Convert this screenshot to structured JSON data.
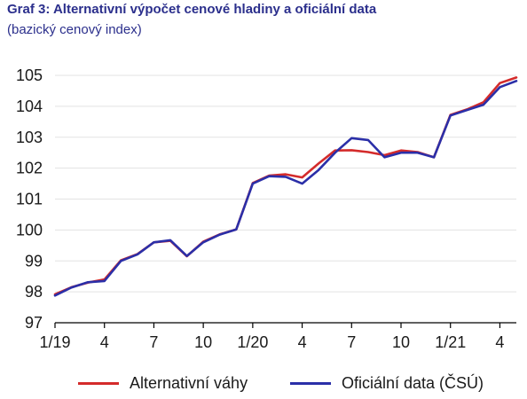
{
  "chart_data": {
    "type": "line",
    "title": "Graf 3: Alternativní výpočet cenové hladiny a oficiální data",
    "subtitle": "(bazický cenový index)",
    "xlabel": "",
    "ylabel": "",
    "ylim": [
      97,
      105
    ],
    "yticks": [
      "97",
      "98",
      "99",
      "100",
      "101",
      "102",
      "103",
      "104",
      "105"
    ],
    "categories": [
      "1/19",
      "2/19",
      "3/19",
      "4/19",
      "5/19",
      "6/19",
      "7/19",
      "8/19",
      "9/19",
      "10/19",
      "11/19",
      "12/19",
      "1/20",
      "2/20",
      "3/20",
      "4/20",
      "5/20",
      "6/20",
      "7/20",
      "8/20",
      "9/20",
      "10/20",
      "11/20",
      "12/20",
      "1/21",
      "2/21",
      "3/21",
      "4/21",
      "5/21"
    ],
    "xticks": [
      {
        "index": 0,
        "label": "1/19"
      },
      {
        "index": 3,
        "label": "4"
      },
      {
        "index": 6,
        "label": "7"
      },
      {
        "index": 9,
        "label": "10"
      },
      {
        "index": 12,
        "label": "1/20"
      },
      {
        "index": 15,
        "label": "4"
      },
      {
        "index": 18,
        "label": "7"
      },
      {
        "index": 21,
        "label": "10"
      },
      {
        "index": 24,
        "label": "1/21"
      },
      {
        "index": 27,
        "label": "4"
      }
    ],
    "grid": true,
    "legend_position": "bottom",
    "series": [
      {
        "name": "Alternativní váhy",
        "color": "#d42b2b",
        "values": [
          97.92,
          98.15,
          98.3,
          98.4,
          99.02,
          99.22,
          99.6,
          99.65,
          99.15,
          99.62,
          99.86,
          100.02,
          101.52,
          101.76,
          101.8,
          101.7,
          102.15,
          102.57,
          102.58,
          102.52,
          102.42,
          102.57,
          102.52,
          102.35,
          103.72,
          103.9,
          104.13,
          104.75,
          104.93
        ]
      },
      {
        "name": "Oficiální data (ČSÚ)",
        "color": "#2b2fa8",
        "values": [
          97.88,
          98.14,
          98.31,
          98.35,
          99.0,
          99.21,
          99.6,
          99.67,
          99.16,
          99.6,
          99.85,
          100.02,
          101.5,
          101.74,
          101.72,
          101.5,
          101.94,
          102.5,
          102.97,
          102.91,
          102.35,
          102.5,
          102.5,
          102.35,
          103.7,
          103.88,
          104.05,
          104.62,
          104.82
        ]
      }
    ]
  }
}
